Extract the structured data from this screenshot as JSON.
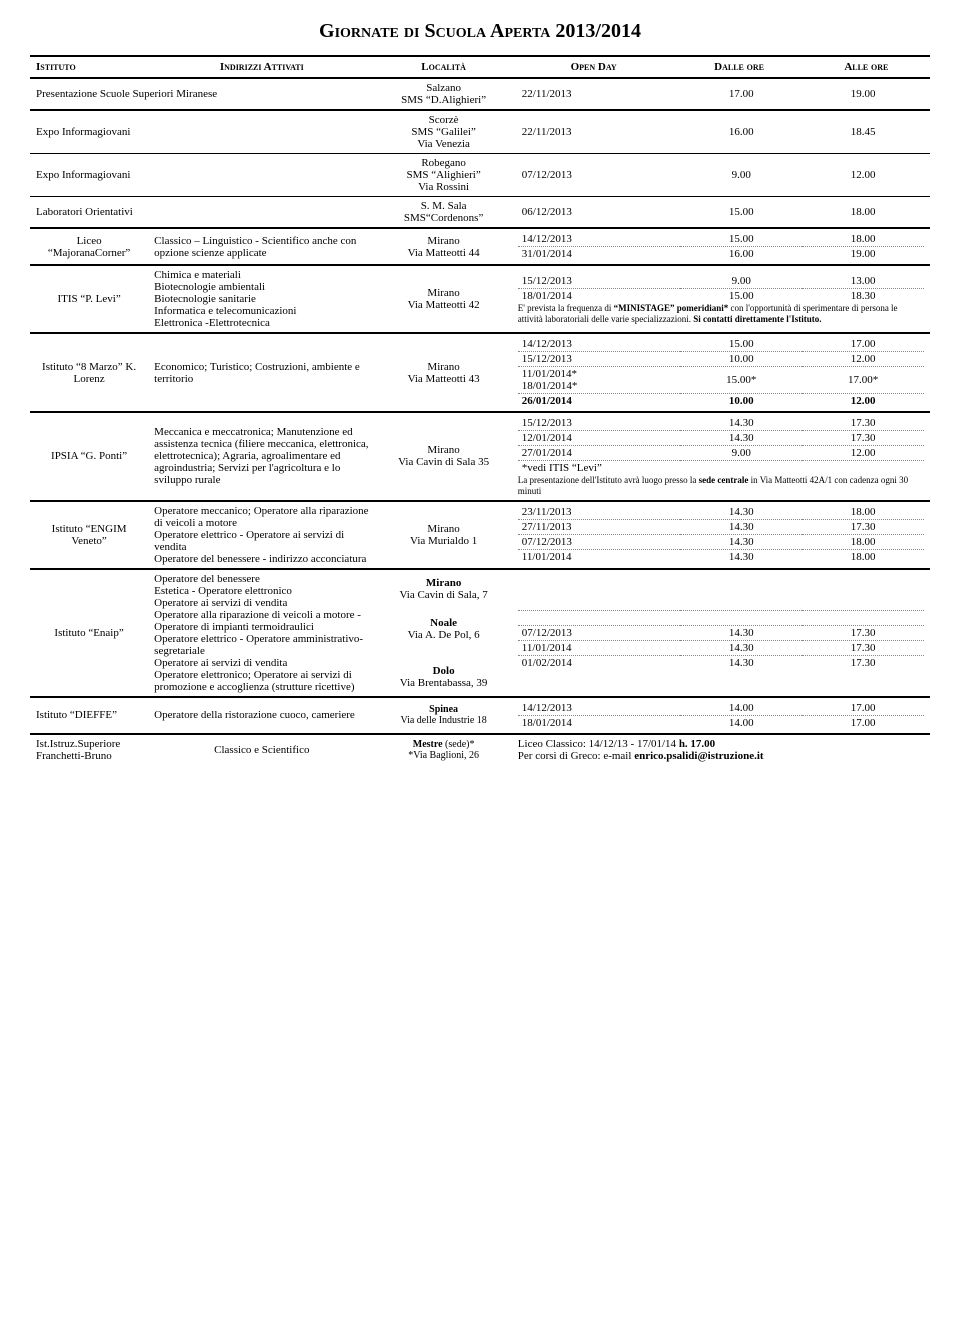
{
  "title": "Giornate di Scuola Aperta 2013/2014",
  "headers": [
    "Istituto",
    "Indirizzi Attivati",
    "Località",
    "Open Day",
    "Dalle ore",
    "Alle ore"
  ],
  "rows": [
    {
      "ist": "Presentazione Scuole Superiori Miranese",
      "istSpan": 2,
      "loc": "Salzano\nSMS “D.Alighieri”",
      "s": [
        [
          "22/11/2013",
          "17.00",
          "19.00"
        ]
      ],
      "sep": "thick"
    },
    {
      "ist": "Expo Informagiovani",
      "istSpan": 2,
      "loc": "Scorzè\nSMS “Galilei”\nVia Venezia",
      "s": [
        [
          "22/11/2013",
          "16.00",
          "18.45"
        ]
      ],
      "sep": "thin"
    },
    {
      "ist": "Expo Informagiovani",
      "istSpan": 2,
      "loc": "Robegano\nSMS “Alighieri”\nVia Rossini",
      "s": [
        [
          "07/12/2013",
          "9.00",
          "12.00"
        ]
      ],
      "sep": "thin"
    },
    {
      "ist": "Laboratori Orientativi",
      "istSpan": 2,
      "loc": "S. M. Sala\nSMS“Cordenons”",
      "s": [
        [
          "06/12/2013",
          "15.00",
          "18.00"
        ]
      ],
      "sep": "thick"
    },
    {
      "ist": "Liceo “MajoranaCorner”",
      "ind": "Classico – Linguistico - Scientifico anche con opzione scienze applicate",
      "loc": "Mirano\nVia Matteotti 44",
      "s": [
        [
          "14/12/2013",
          "15.00",
          "18.00"
        ],
        [
          "31/01/2014",
          "16.00",
          "19.00"
        ]
      ],
      "sep": "thick"
    },
    {
      "ist": "ITIS  “P. Levi”",
      "ind": "Chimica e materiali\nBiotecnologie ambientali\nBiotecnologie sanitarie\nInformatica e telecomunicazioni\nElettronica -Elettrotecnica",
      "loc": "Mirano\nVia Matteotti 42",
      "s": [
        [
          "15/12/2013",
          "9.00",
          "13.00"
        ],
        [
          "18/01/2014",
          "15.00",
          "18.30"
        ]
      ],
      "note": "E' prevista la frequenza di <b>“MINISTAGE” pomeridiani*</b> con l'opportunità di sperimentare di persona le attività laboratoriali delle varie specializzazioni. <b>Si contatti direttamente l'Istituto.</b>",
      "sep": "thick"
    },
    {
      "ist": "Istituto “8 Marzo” K. Lorenz",
      "ind": "Economico; Turistico; Costruzioni, ambiente e territorio",
      "loc": "Mirano\nVia Matteotti 43",
      "s": [
        [
          "14/12/2013",
          "15.00",
          "17.00"
        ],
        [
          "15/12/2013",
          "10.00",
          "12.00"
        ],
        [
          "11/01/2014*\n18/01/2014*",
          "15.00*",
          "17.00*"
        ],
        [
          "<b>26/01/2014</b>",
          "<b>10.00</b>",
          "<b>12.00</b>"
        ]
      ],
      "sep": "thick"
    },
    {
      "ist": "IPSIA “G. Ponti”",
      "ind": "Meccanica e meccatronica; Manutenzione ed assistenza tecnica (filiere meccanica, elettronica, elettrotecnica); Agraria, agroalimentare ed agroindustria; Servizi per l'agricoltura e lo sviluppo rurale",
      "loc": "Mirano\nVia Cavin di Sala 35",
      "s": [
        [
          "15/12/2013",
          "14.30",
          "17.30"
        ],
        [
          "12/01/2014",
          "14.30",
          "17.30"
        ],
        [
          "27/01/2014",
          "9.00",
          "12.00"
        ],
        [
          "*vedi ITIS “Levi”",
          "",
          ""
        ]
      ],
      "note": "La presentazione dell'Istituto avrà luogo presso la <b>sede centrale</b> in Via Matteotti 42A/1 con cadenza ogni 30 minuti",
      "sep": "thick"
    },
    {
      "ist": "Istituto “ENGIM Veneto”",
      "ind": "Operatore meccanico; Operatore alla riparazione di veicoli a motore\nOperatore elettrico -  Operatore ai servizi di vendita\nOperatore del benessere - indirizzo acconciatura",
      "loc": "Mirano\nVia Murialdo 1",
      "s": [
        [
          "23/11/2013",
          "14.30",
          "18.00"
        ],
        [
          "27/11/2013",
          "14.30",
          "17.30"
        ],
        [
          "07/12/2013",
          "14.30",
          "18.00"
        ],
        [
          "11/01/2014",
          "14.30",
          "18.00"
        ]
      ],
      "sep": "thick"
    }
  ],
  "enaip": {
    "ist": "Istituto “Enaip”",
    "ind": "Operatore del benessere\nEstetica - Operatore elettronico\nOperatore ai servizi di vendita\nOperatore alla riparazione di veicoli a motore - Operatore di impianti termoidraulici\nOperatore elettrico - Operatore amministrativo-segretariale\nOperatore ai servizi di vendita\nOperatore elettronico; Operatore ai servizi di promozione e accoglienza (strutture ricettive)",
    "locs": [
      "<b>Mirano</b>\nVia Cavin di Sala, 7",
      "<b>Noale</b>\nVia A. De Pol, 6",
      "<b>Dolo</b>\nVia Brentabassa, 39"
    ],
    "s": [
      [
        "07/12/2013",
        "14.30",
        "17.30"
      ],
      [
        "11/01/2014",
        "14.30",
        "17.30"
      ],
      [
        "01/02/2014",
        "14.30",
        "17.30"
      ]
    ]
  },
  "dieffe": {
    "ist": "Istituto “DIEFFE”",
    "ind": "Operatore della ristorazione cuoco, cameriere",
    "loc": "<b>Spinea</b>\nVia delle Industrie 18",
    "s": [
      [
        "14/12/2013",
        "14.00",
        "17.00"
      ],
      [
        "18/01/2014",
        "14.00",
        "17.00"
      ]
    ]
  },
  "franchetti": {
    "ist": "Ist.Istruz.Superiore\nFranchetti-Bruno",
    "ind": "Classico e Scientifico",
    "loc": "<b>Mestre</b> (sede)*\n*Via Baglioni, 26",
    "txt": "Liceo Classico:  14/12/13 - 17/01/14    <b>h. 17.00</b>\nPer corsi di Greco:     e-mail   <b>enrico.psalidi@istruzione.it</b>"
  }
}
